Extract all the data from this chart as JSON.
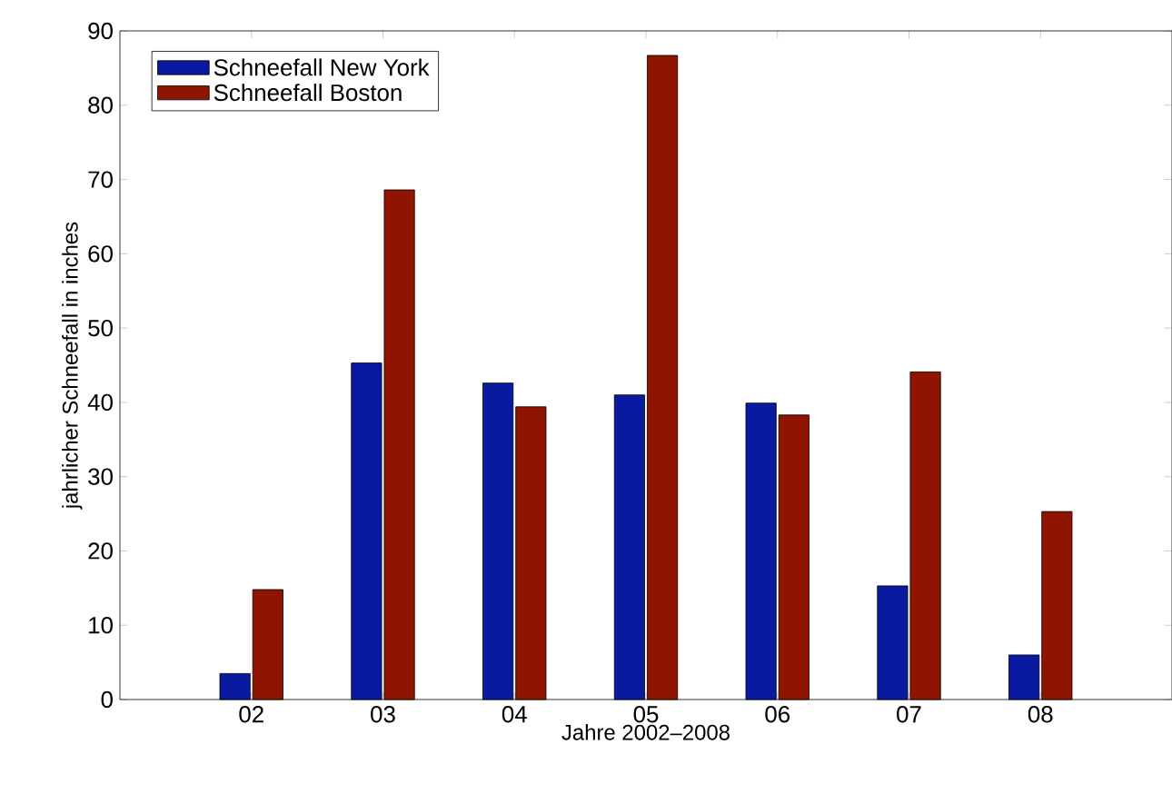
{
  "chart_data": {
    "type": "bar",
    "xlabel": "Jahre 2002–2008",
    "ylabel": "jahrlicher Schneefall in inches",
    "categories": [
      "02",
      "03",
      "04",
      "05",
      "06",
      "07",
      "08"
    ],
    "series": [
      {
        "name": "Schneefall New York",
        "color": "#0a1aa0",
        "values": [
          3.5,
          45.3,
          42.6,
          41.0,
          39.9,
          15.3,
          6.0
        ]
      },
      {
        "name": "Schneefall Boston",
        "color": "#8f1500",
        "values": [
          14.8,
          68.6,
          39.4,
          86.7,
          38.3,
          44.1,
          25.3
        ]
      }
    ],
    "ylim": [
      0,
      90
    ],
    "yticks": [
      0,
      10,
      20,
      30,
      40,
      50,
      60,
      70,
      80,
      90
    ],
    "grid": false,
    "legend": "top left"
  }
}
